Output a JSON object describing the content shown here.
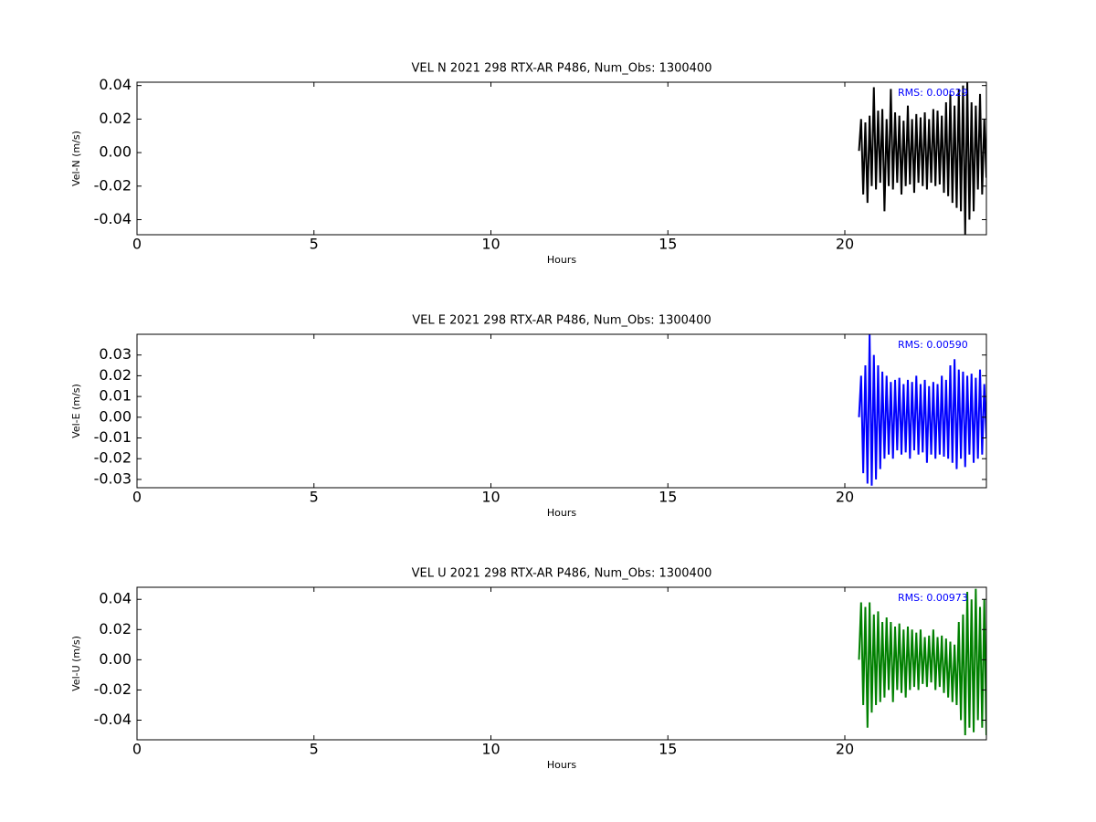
{
  "chart_data": [
    {
      "type": "line",
      "title": "VEL N 2021 298 RTX-AR  P486, Num_Obs: 1300400",
      "xlabel": "Hours",
      "ylabel": "Vel-N (m/s)",
      "annotation": "RMS:  0.00629",
      "xlim": [
        0,
        24
      ],
      "ylim": [
        -0.049,
        0.042
      ],
      "xticks": [
        0,
        5,
        10,
        15,
        20
      ],
      "yticks": [
        -0.04,
        -0.02,
        {
          "value": 0,
          "label": "0.00"
        },
        0.02,
        0.04
      ],
      "color": "#000000",
      "x": [
        20.4,
        20.46,
        20.52,
        20.58,
        20.64,
        20.7,
        20.76,
        20.82,
        20.88,
        20.94,
        21,
        21.06,
        21.12,
        21.18,
        21.24,
        21.3,
        21.36,
        21.42,
        21.48,
        21.54,
        21.6,
        21.66,
        21.72,
        21.78,
        21.84,
        21.9,
        21.96,
        22.02,
        22.08,
        22.14,
        22.2,
        22.26,
        22.32,
        22.38,
        22.44,
        22.5,
        22.56,
        22.62,
        22.68,
        22.74,
        22.8,
        22.86,
        22.92,
        22.98,
        23.04,
        23.1,
        23.16,
        23.22,
        23.28,
        23.34,
        23.4,
        23.46,
        23.52,
        23.58,
        23.64,
        23.7,
        23.76,
        23.82,
        23.88,
        23.94,
        24
      ],
      "values": [
        0.001,
        0.02,
        -0.025,
        0.018,
        -0.03,
        0.022,
        -0.02,
        0.039,
        -0.022,
        0.025,
        -0.018,
        0.026,
        -0.035,
        0.02,
        -0.02,
        0.038,
        -0.022,
        0.024,
        -0.018,
        0.022,
        -0.025,
        0.019,
        -0.02,
        0.028,
        -0.019,
        0.02,
        -0.024,
        0.023,
        -0.018,
        0.021,
        -0.02,
        0.024,
        -0.022,
        0.02,
        -0.018,
        0.026,
        -0.02,
        0.025,
        -0.019,
        0.022,
        -0.024,
        0.03,
        -0.026,
        0.035,
        -0.03,
        0.028,
        -0.033,
        0.038,
        -0.035,
        0.04,
        -0.049,
        0.042,
        -0.04,
        0.03,
        -0.035,
        0.028,
        -0.022,
        0.035,
        -0.025,
        0.02,
        -0.015
      ]
    },
    {
      "type": "line",
      "title": "VEL E 2021 298 RTX-AR  P486, Num_Obs: 1300400",
      "xlabel": "Hours",
      "ylabel": "Vel-E (m/s)",
      "annotation": "RMS:  0.00590",
      "xlim": [
        0,
        24
      ],
      "ylim": [
        -0.034,
        0.04
      ],
      "xticks": [
        0,
        5,
        10,
        15,
        20
      ],
      "yticks": [
        -0.03,
        -0.02,
        -0.01,
        {
          "value": 0,
          "label": "0.00"
        },
        0.01,
        0.02,
        0.03
      ],
      "color": "#0000ff",
      "x": [
        20.4,
        20.46,
        20.52,
        20.58,
        20.64,
        20.7,
        20.76,
        20.82,
        20.88,
        20.94,
        21,
        21.06,
        21.12,
        21.18,
        21.24,
        21.3,
        21.36,
        21.42,
        21.48,
        21.54,
        21.6,
        21.66,
        21.72,
        21.78,
        21.84,
        21.9,
        21.96,
        22.02,
        22.08,
        22.14,
        22.2,
        22.26,
        22.32,
        22.38,
        22.44,
        22.5,
        22.56,
        22.62,
        22.68,
        22.74,
        22.8,
        22.86,
        22.92,
        22.98,
        23.04,
        23.1,
        23.16,
        23.22,
        23.28,
        23.34,
        23.4,
        23.46,
        23.52,
        23.58,
        23.64,
        23.7,
        23.76,
        23.82,
        23.88,
        23.94,
        24
      ],
      "values": [
        0.0,
        0.02,
        -0.027,
        0.025,
        -0.032,
        0.04,
        -0.033,
        0.03,
        -0.03,
        0.025,
        -0.025,
        0.022,
        -0.02,
        0.02,
        -0.018,
        0.017,
        -0.02,
        0.018,
        -0.016,
        0.019,
        -0.018,
        0.016,
        -0.017,
        0.018,
        -0.02,
        0.017,
        -0.016,
        0.02,
        -0.018,
        0.016,
        -0.017,
        0.018,
        -0.022,
        0.015,
        -0.018,
        0.017,
        -0.02,
        0.016,
        -0.018,
        0.02,
        -0.019,
        0.018,
        -0.02,
        0.025,
        -0.022,
        0.028,
        -0.025,
        0.023,
        -0.02,
        0.022,
        -0.024,
        0.02,
        -0.018,
        0.021,
        -0.022,
        0.019,
        -0.02,
        0.023,
        -0.018,
        0.016,
        -0.01
      ]
    },
    {
      "type": "line",
      "title": "VEL U 2021 298 RTX-AR  P486, Num_Obs: 1300400",
      "xlabel": "Hours",
      "ylabel": "Vel-U (m/s)",
      "annotation": "RMS:  0.00973",
      "xlim": [
        0,
        24
      ],
      "ylim": [
        -0.053,
        0.048
      ],
      "xticks": [
        0,
        5,
        10,
        15,
        20
      ],
      "yticks": [
        -0.04,
        -0.02,
        {
          "value": 0,
          "label": "0.00"
        },
        0.02,
        0.04
      ],
      "color": "#008000",
      "x": [
        20.4,
        20.46,
        20.52,
        20.58,
        20.64,
        20.7,
        20.76,
        20.82,
        20.88,
        20.94,
        21,
        21.06,
        21.12,
        21.18,
        21.24,
        21.3,
        21.36,
        21.42,
        21.48,
        21.54,
        21.6,
        21.66,
        21.72,
        21.78,
        21.84,
        21.9,
        21.96,
        22.02,
        22.08,
        22.14,
        22.2,
        22.26,
        22.32,
        22.38,
        22.44,
        22.5,
        22.56,
        22.62,
        22.68,
        22.74,
        22.8,
        22.86,
        22.92,
        22.98,
        23.04,
        23.1,
        23.16,
        23.22,
        23.28,
        23.34,
        23.4,
        23.46,
        23.52,
        23.58,
        23.64,
        23.7,
        23.76,
        23.82,
        23.88,
        23.94,
        24
      ],
      "values": [
        0.0,
        0.038,
        -0.03,
        0.035,
        -0.045,
        0.038,
        -0.035,
        0.03,
        -0.03,
        0.032,
        -0.028,
        0.025,
        -0.025,
        0.028,
        -0.02,
        0.025,
        -0.028,
        0.022,
        -0.02,
        0.024,
        -0.022,
        0.02,
        -0.025,
        0.022,
        -0.02,
        0.02,
        -0.018,
        0.018,
        -0.02,
        0.02,
        -0.016,
        0.015,
        -0.018,
        0.016,
        -0.015,
        0.02,
        -0.02,
        0.015,
        -0.018,
        0.016,
        -0.022,
        0.014,
        -0.025,
        0.012,
        -0.028,
        0.01,
        -0.03,
        0.025,
        -0.04,
        0.03,
        -0.05,
        0.045,
        -0.045,
        0.04,
        -0.048,
        0.047,
        -0.04,
        0.035,
        -0.045,
        0.04,
        -0.05
      ]
    }
  ]
}
